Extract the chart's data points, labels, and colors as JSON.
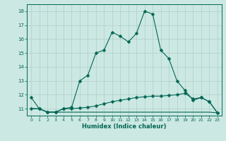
{
  "xlabel": "Humidex (Indice chaleur)",
  "x": [
    0,
    1,
    2,
    3,
    4,
    5,
    6,
    7,
    8,
    9,
    10,
    11,
    12,
    13,
    14,
    15,
    16,
    17,
    18,
    19,
    20,
    21,
    22,
    23
  ],
  "line_top": [
    11.8,
    11.0,
    10.75,
    10.75,
    11.0,
    11.1,
    13.0,
    13.4,
    15.0,
    15.2,
    16.5,
    16.2,
    15.8,
    16.4,
    18.0,
    17.8,
    15.2,
    14.6,
    13.0,
    12.3,
    11.6,
    11.8,
    11.5,
    10.7
  ],
  "line_mid": [
    11.0,
    11.0,
    10.75,
    10.75,
    11.0,
    11.0,
    11.05,
    11.1,
    11.2,
    11.35,
    11.5,
    11.6,
    11.7,
    11.8,
    11.85,
    11.9,
    11.9,
    11.95,
    12.0,
    12.1,
    11.7,
    11.8,
    11.5,
    10.7
  ],
  "line_bot": [
    11.0,
    11.0,
    10.75,
    10.75,
    10.75,
    10.75,
    10.75,
    10.75,
    10.75,
    10.75,
    10.75,
    10.75,
    10.75,
    10.75,
    10.75,
    10.75,
    10.75,
    10.75,
    10.75,
    10.75,
    10.75,
    10.75,
    10.75,
    10.7
  ],
  "ylim": [
    10.5,
    18.5
  ],
  "yticks": [
    11,
    12,
    13,
    14,
    15,
    16,
    17,
    18
  ],
  "bg_color": "#cce8e2",
  "grid_color": "#b0ceca",
  "line_color": "#006655",
  "marker_size": 2.5
}
